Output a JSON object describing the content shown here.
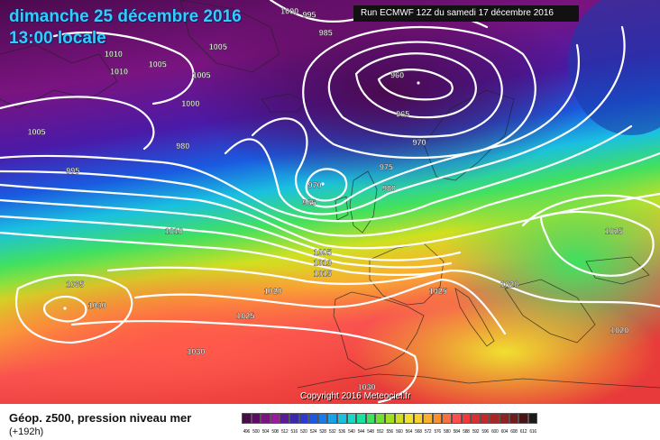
{
  "header": {
    "title_date": "dimanche 25 décembre 2016",
    "title_time": "13:00 locale",
    "run_info": "Run ECMWF 12Z du samedi 17 décembre 2016"
  },
  "footer": {
    "title": "Géop. z500, pression niveau mer",
    "forecast_hour": "(+192h)",
    "copyright": "Copyright 2016 Meteociel.fr"
  },
  "legend": {
    "values": [
      "496",
      "500",
      "504",
      "508",
      "512",
      "516",
      "520",
      "524",
      "528",
      "532",
      "536",
      "540",
      "544",
      "548",
      "552",
      "556",
      "560",
      "564",
      "568",
      "572",
      "576",
      "580",
      "584",
      "588",
      "592",
      "596",
      "600",
      "604",
      "608",
      "612",
      "616"
    ],
    "colors": [
      "#4b0a4e",
      "#5e0c66",
      "#7a1480",
      "#9a1aa0",
      "#5a1a9a",
      "#3a2aaa",
      "#2a3acc",
      "#1a5ae0",
      "#1a7ae8",
      "#1aa0e8",
      "#1ac0e0",
      "#1ad8c8",
      "#1ae0a0",
      "#40e060",
      "#70e030",
      "#a0e020",
      "#d0e020",
      "#f0e030",
      "#f8d030",
      "#f8b030",
      "#f89030",
      "#f87040",
      "#f85050",
      "#f03a3a",
      "#d83030",
      "#c02a2a",
      "#a82626",
      "#902222",
      "#701c1c",
      "#4a1414",
      "#1a1a1a"
    ]
  },
  "isobar_labels": [
    {
      "text": "1000",
      "lon": -24,
      "lat": 70
    },
    {
      "text": "995",
      "lon": -20,
      "lat": 69.5
    },
    {
      "text": "985",
      "lon": -17,
      "lat": 67
    },
    {
      "text": "1010",
      "lon": -56,
      "lat": 64
    },
    {
      "text": "1010",
      "lon": -55,
      "lat": 61.5
    },
    {
      "text": "1005",
      "lon": -48,
      "lat": 62.5
    },
    {
      "text": "1005",
      "lon": -37,
      "lat": 65
    },
    {
      "text": "1005",
      "lon": -40,
      "lat": 61
    },
    {
      "text": "1000",
      "lon": -42,
      "lat": 57
    },
    {
      "text": "1005",
      "lon": -70,
      "lat": 53
    },
    {
      "text": "980",
      "lon": -43,
      "lat": 51
    },
    {
      "text": "995",
      "lon": -63,
      "lat": 47.5
    },
    {
      "text": "960",
      "lon": -4,
      "lat": 61
    },
    {
      "text": "965",
      "lon": -3,
      "lat": 55.5
    },
    {
      "text": "970",
      "lon": 0,
      "lat": 51.5
    },
    {
      "text": "975",
      "lon": -6,
      "lat": 48
    },
    {
      "text": "980",
      "lon": -5.5,
      "lat": 45
    },
    {
      "text": "970",
      "lon": -19,
      "lat": 45.5
    },
    {
      "text": "965",
      "lon": -20,
      "lat": 43
    },
    {
      "text": "1010",
      "lon": -45,
      "lat": 39
    },
    {
      "text": "1005",
      "lon": -18,
      "lat": 36
    },
    {
      "text": "1010",
      "lon": -18,
      "lat": 34.5
    },
    {
      "text": "1015",
      "lon": -18,
      "lat": 33
    },
    {
      "text": "1025",
      "lon": 35,
      "lat": 39
    },
    {
      "text": "1035",
      "lon": -63,
      "lat": 31.5
    },
    {
      "text": "1040",
      "lon": -59,
      "lat": 28.5
    },
    {
      "text": "1020",
      "lon": -27,
      "lat": 30.5
    },
    {
      "text": "1020",
      "lon": 16,
      "lat": 31.5
    },
    {
      "text": "1025",
      "lon": -32,
      "lat": 27
    },
    {
      "text": "1025",
      "lon": 3,
      "lat": 30.5
    },
    {
      "text": "1020",
      "lon": 36,
      "lat": 25
    },
    {
      "text": "1030",
      "lon": -41,
      "lat": 22
    },
    {
      "text": "1030",
      "lon": -10,
      "lat": 17
    }
  ]
}
